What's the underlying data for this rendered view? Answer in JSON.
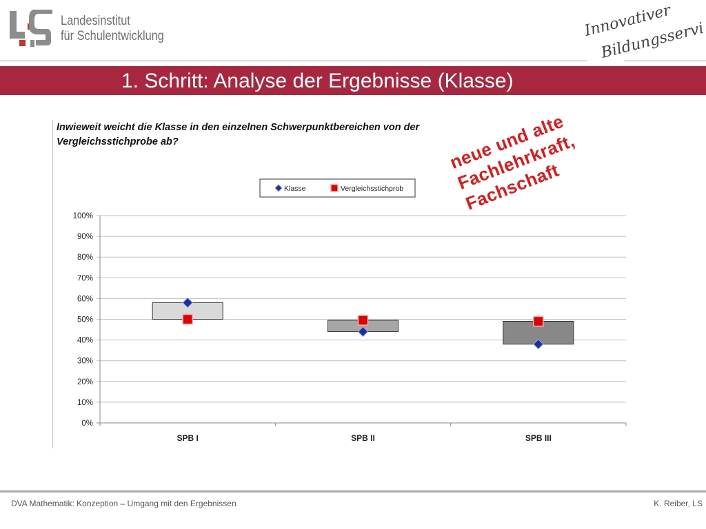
{
  "header": {
    "logo_line1": "Landesinstitut",
    "logo_line2": "für Schulentwicklung",
    "signature_line1": "Innovativer",
    "signature_line2": "Bildungsservice",
    "title": "1. Schritt: Analyse der Ergebnisse (Klasse)",
    "colors": {
      "band": "#a8263e",
      "logo_grey": "#8c8c8c",
      "logo_red": "#c0392b"
    }
  },
  "chart_heading": {
    "line1": "Inwieweit weicht die Klasse in den einzelnen Schwerpunktbereichen von der",
    "line2": "Vergleichsstichprobe ab?"
  },
  "annotation": {
    "line1": "neue und alte",
    "line2": "Fachlehrkraft,",
    "line3": "Fachschaft",
    "color": "#e01818"
  },
  "chart_data": {
    "type": "scatter",
    "categories": [
      "SPB I",
      "SPB II",
      "SPB III"
    ],
    "series": [
      {
        "name": "Klasse",
        "values": [
          58,
          44,
          38
        ],
        "color": "#1a2ea8",
        "marker": "diamond"
      },
      {
        "name": "Vergleichsstichprob",
        "values": [
          50,
          49.5,
          49
        ],
        "color": "#e00000",
        "marker": "square"
      }
    ],
    "range_box_fill": [
      "#d9d9d9",
      "#a6a6a6",
      "#888888"
    ],
    "yticks": [
      "0%",
      "10%",
      "20%",
      "30%",
      "40%",
      "50%",
      "60%",
      "70%",
      "80%",
      "90%",
      "100%"
    ],
    "ylim": [
      0,
      100
    ],
    "grid": true,
    "legend_position": "top"
  },
  "footer": {
    "left": "DVA Mathematik: Konzeption – Umgang mit den Ergebnissen",
    "right": "K. Reiber, LS"
  }
}
